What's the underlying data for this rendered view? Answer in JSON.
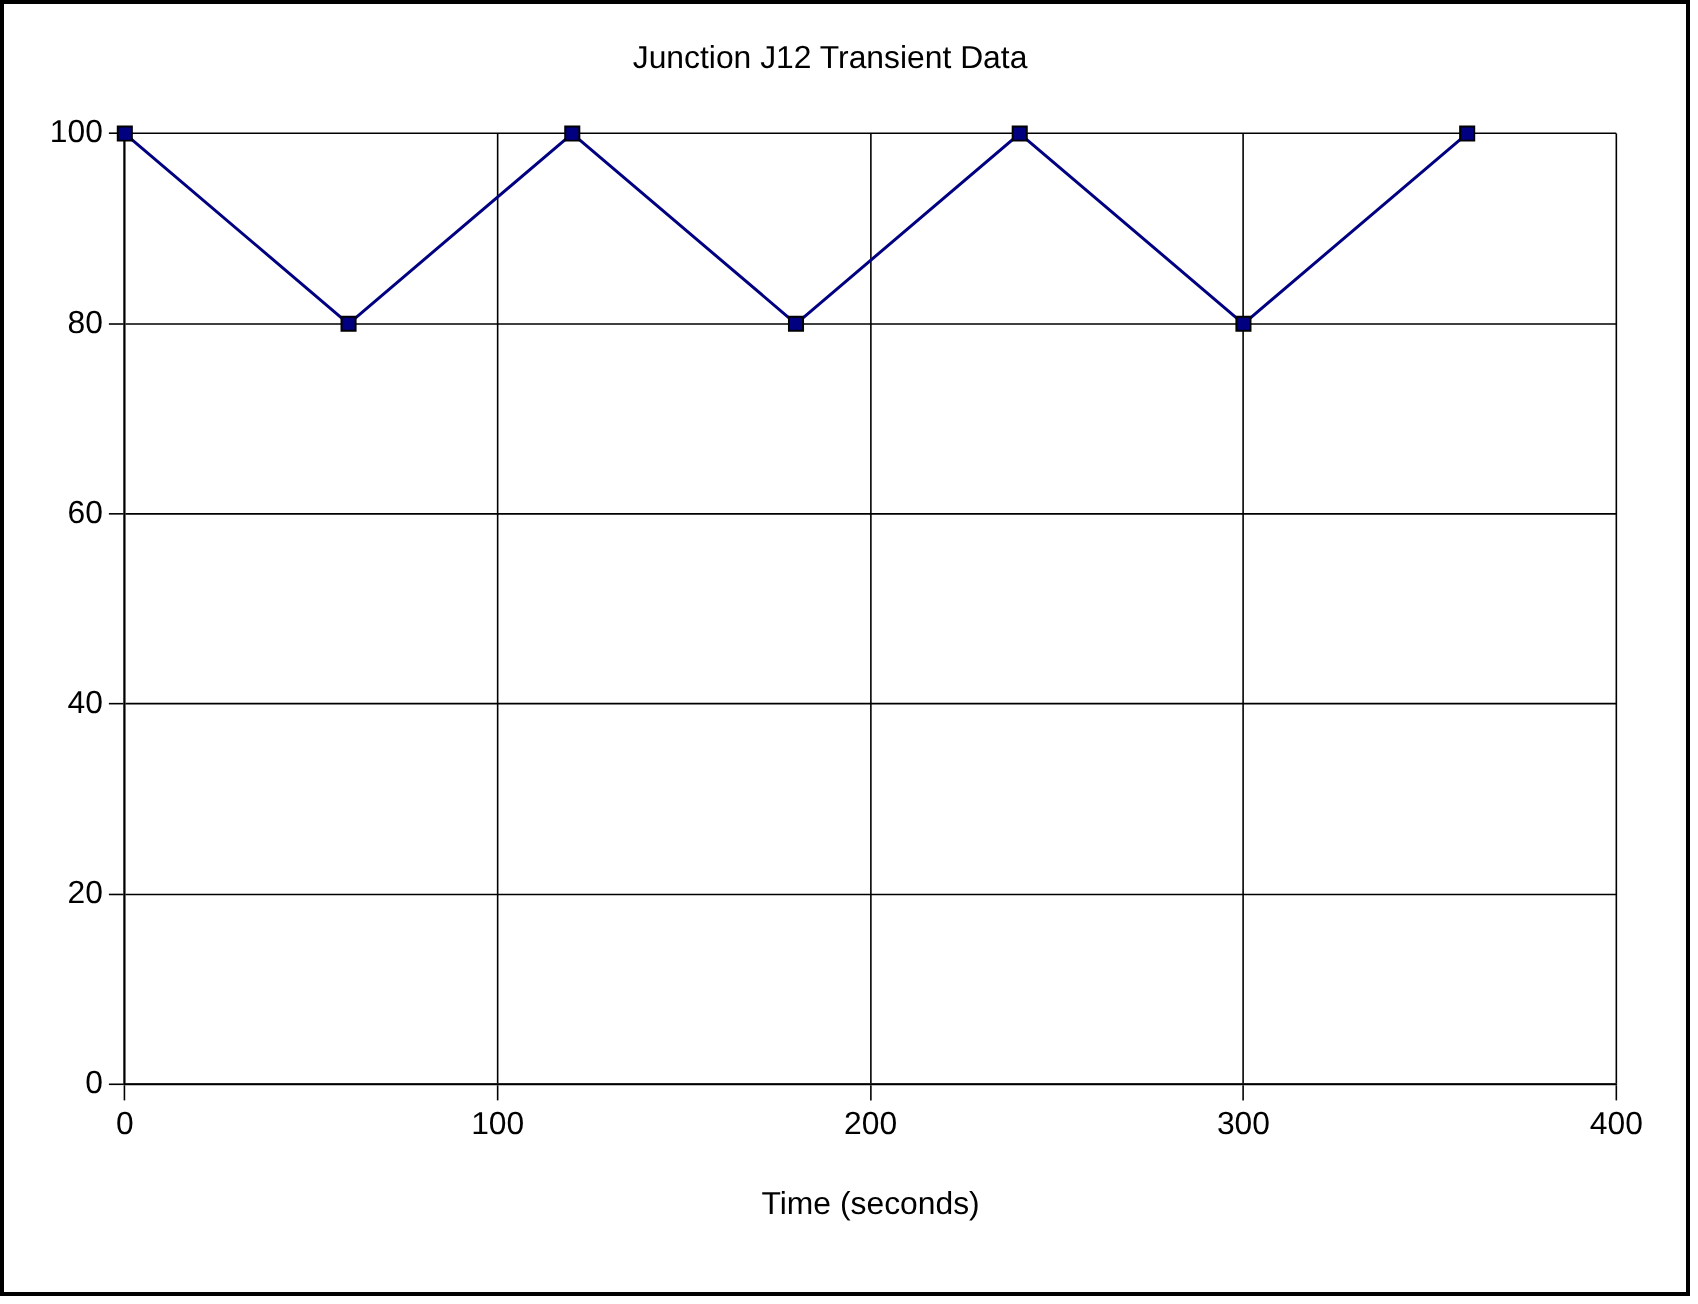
{
  "chart_data": {
    "type": "line",
    "title": "Junction J12 Transient Data",
    "xlabel": "Time (seconds)",
    "x": [
      0,
      60,
      120,
      180,
      240,
      300,
      360
    ],
    "series": [
      {
        "color": "#000080",
        "values": [
          100,
          80,
          100,
          80,
          100,
          80,
          100
        ]
      }
    ],
    "xlim": [
      0,
      400
    ],
    "xticks": [
      0,
      100,
      200,
      300,
      400
    ],
    "ylim": [
      0,
      100
    ],
    "yticks": [
      0,
      20,
      40,
      60,
      80,
      100
    ],
    "grid": true,
    "legend": false,
    "marker": "square",
    "line_style": "solid"
  }
}
